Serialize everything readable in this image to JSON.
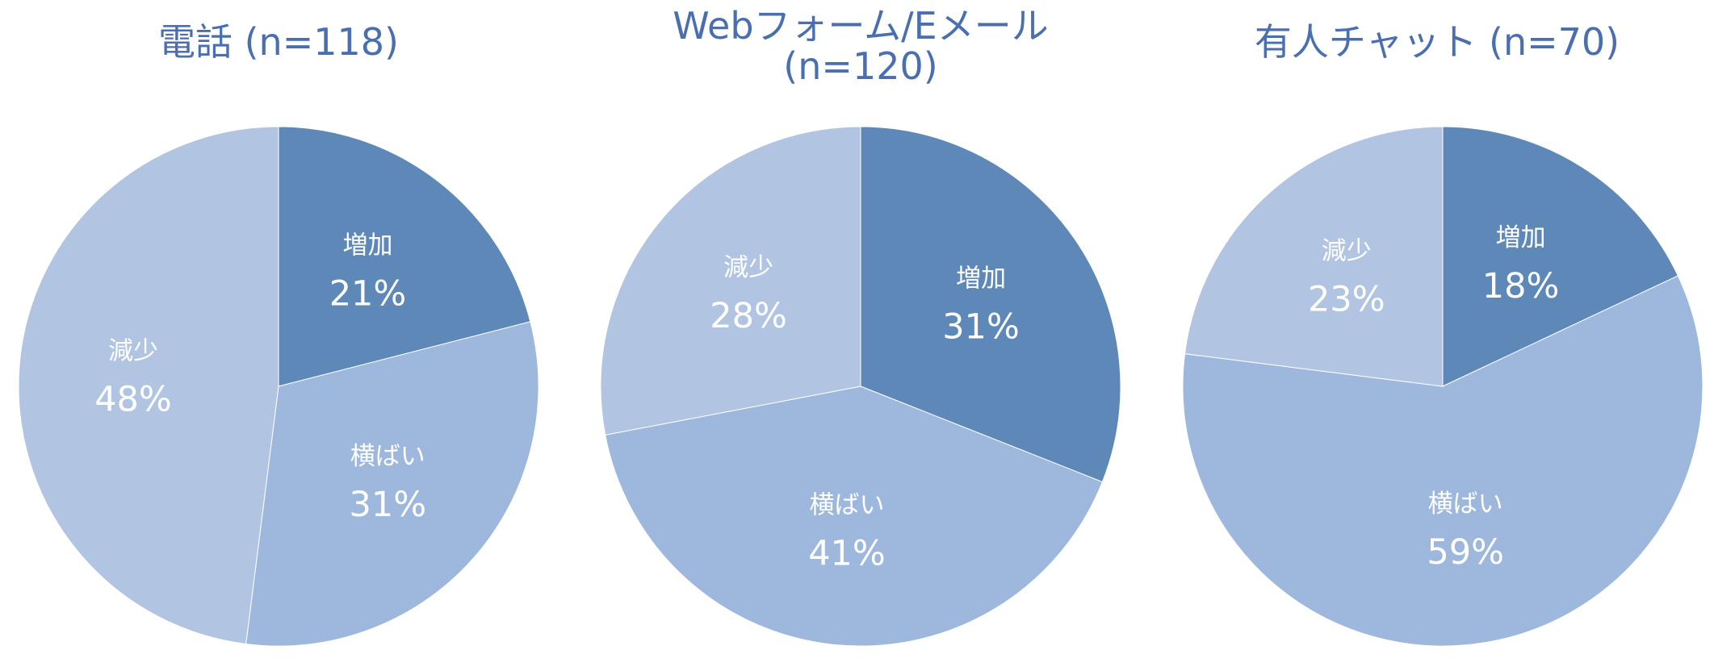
{
  "colors": {
    "title": "#4a6fb0",
    "label": "#ffffff",
    "increase": "#5d88b8",
    "flat": "#9db8dc",
    "decrease": "#b1c5e2"
  },
  "chart_data": [
    {
      "type": "pie",
      "title": "電話 (n=118)",
      "slices": [
        {
          "name": "増加",
          "value": 21,
          "label": "21%",
          "color": "#5d88b8"
        },
        {
          "name": "横ばい",
          "value": 31,
          "label": "31%",
          "color": "#9db8dc"
        },
        {
          "name": "減少",
          "value": 48,
          "label": "48%",
          "color": "#b1c5e2"
        }
      ]
    },
    {
      "type": "pie",
      "title": "Webフォーム/Eメール(n=120)",
      "title_lines": [
        "Webフォーム/Eメール",
        "(n=120)"
      ],
      "slices": [
        {
          "name": "増加",
          "value": 31,
          "label": "31%",
          "color": "#5d88b8"
        },
        {
          "name": "横ばい",
          "value": 41,
          "label": "41%",
          "color": "#9db8dc"
        },
        {
          "name": "減少",
          "value": 28,
          "label": "28%",
          "color": "#b1c5e2"
        }
      ]
    },
    {
      "type": "pie",
      "title": "有人チャット (n=70)",
      "slices": [
        {
          "name": "増加",
          "value": 18,
          "label": "18%",
          "color": "#5d88b8"
        },
        {
          "name": "横ばい",
          "value": 59,
          "label": "59%",
          "color": "#9db8dc"
        },
        {
          "name": "減少",
          "value": 23,
          "label": "23%",
          "color": "#b1c5e2"
        }
      ]
    }
  ]
}
